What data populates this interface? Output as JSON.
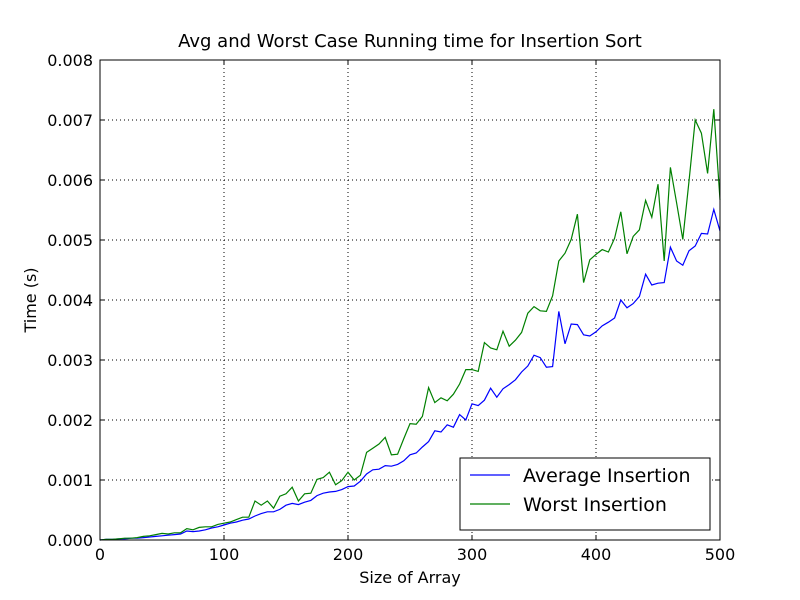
{
  "chart_data": {
    "type": "line",
    "title": "Avg and Worst Case Running time for Insertion Sort",
    "xlabel": "Size of Array",
    "ylabel": "Time (s)",
    "x": [
      0,
      5,
      10,
      15,
      20,
      25,
      30,
      35,
      40,
      45,
      50,
      55,
      60,
      65,
      70,
      75,
      80,
      85,
      90,
      95,
      100,
      105,
      110,
      115,
      120,
      125,
      130,
      135,
      140,
      145,
      150,
      155,
      160,
      165,
      170,
      175,
      180,
      185,
      190,
      195,
      200,
      205,
      210,
      215,
      220,
      225,
      230,
      235,
      240,
      245,
      250,
      255,
      260,
      265,
      270,
      275,
      280,
      285,
      290,
      295,
      300,
      305,
      310,
      315,
      320,
      325,
      330,
      335,
      340,
      345,
      350,
      355,
      360,
      365,
      370,
      375,
      380,
      385,
      390,
      395,
      400,
      405,
      410,
      415,
      420,
      425,
      430,
      435,
      440,
      445,
      450,
      455,
      460,
      465,
      470,
      475,
      480,
      485,
      490,
      495,
      500
    ],
    "series": [
      {
        "name": "Average Insertion",
        "color": "#0000ff",
        "values": [
          0,
          1e-05,
          1e-05,
          2e-05,
          2e-05,
          3e-05,
          3e-05,
          4e-05,
          5e-05,
          6e-05,
          7e-05,
          8e-05,
          9e-05,
          0.0001,
          0.00015,
          0.00014,
          0.00015,
          0.00017,
          0.0002,
          0.00022,
          0.00025,
          0.00028,
          0.0003,
          0.00033,
          0.00035,
          0.0004,
          0.00044,
          0.00047,
          0.00047,
          0.00051,
          0.00058,
          0.00061,
          0.00059,
          0.00063,
          0.00066,
          0.00074,
          0.00078,
          0.0008,
          0.00081,
          0.00084,
          0.00089,
          0.0009,
          0.00098,
          0.0011,
          0.00117,
          0.00118,
          0.00124,
          0.00123,
          0.00126,
          0.00132,
          0.00142,
          0.00145,
          0.00155,
          0.00164,
          0.00182,
          0.0018,
          0.00192,
          0.00188,
          0.00209,
          0.002,
          0.00227,
          0.00224,
          0.00233,
          0.00253,
          0.00238,
          0.00252,
          0.00259,
          0.00267,
          0.0028,
          0.0029,
          0.00308,
          0.00304,
          0.00288,
          0.00289,
          0.00381,
          0.00327,
          0.0036,
          0.00359,
          0.00342,
          0.0034,
          0.00347,
          0.00357,
          0.00363,
          0.0037,
          0.004,
          0.00387,
          0.00394,
          0.00406,
          0.00443,
          0.00425,
          0.00428,
          0.00429,
          0.00488,
          0.00465,
          0.00458,
          0.00482,
          0.0049,
          0.00511,
          0.0051,
          0.00551,
          0.00515
        ]
      },
      {
        "name": "Worst Insertion",
        "color": "#008000",
        "values": [
          0,
          1e-05,
          1e-05,
          2e-05,
          3e-05,
          3e-05,
          4e-05,
          6e-05,
          7e-05,
          9e-05,
          0.00011,
          0.0001,
          0.00012,
          0.00012,
          0.00019,
          0.00017,
          0.00021,
          0.00022,
          0.00022,
          0.00026,
          0.00028,
          0.0003,
          0.00034,
          0.00038,
          0.00038,
          0.00065,
          0.00058,
          0.00065,
          0.00053,
          0.00073,
          0.00077,
          0.00088,
          0.00065,
          0.00077,
          0.00078,
          0.00101,
          0.00104,
          0.00113,
          0.00092,
          0.00099,
          0.00113,
          0.001,
          0.00108,
          0.00146,
          0.00153,
          0.0016,
          0.00171,
          0.00142,
          0.00143,
          0.00169,
          0.00194,
          0.00193,
          0.00206,
          0.00254,
          0.00229,
          0.00237,
          0.00232,
          0.00243,
          0.0026,
          0.00284,
          0.00284,
          0.00281,
          0.00329,
          0.0032,
          0.00317,
          0.00348,
          0.00323,
          0.00333,
          0.00346,
          0.00378,
          0.00389,
          0.00382,
          0.00381,
          0.00407,
          0.00465,
          0.00478,
          0.00501,
          0.00543,
          0.00429,
          0.00467,
          0.00476,
          0.00484,
          0.0048,
          0.00503,
          0.00547,
          0.00477,
          0.00506,
          0.00517,
          0.00566,
          0.00538,
          0.00593,
          0.00465,
          0.00621,
          0.00562,
          0.00501,
          0.00598,
          0.007,
          0.00678,
          0.00611,
          0.00718,
          0.00567
        ]
      }
    ],
    "xlim": [
      0,
      500
    ],
    "xticks": [
      0,
      100,
      200,
      300,
      400,
      500
    ],
    "ylim": [
      0,
      0.008
    ],
    "yticks": [
      {
        "value": 0,
        "label": "0.000"
      },
      {
        "value": 0.001,
        "label": "0.001"
      },
      {
        "value": 0.002,
        "label": "0.002"
      },
      {
        "value": 0.003,
        "label": "0.003"
      },
      {
        "value": 0.004,
        "label": "0.004"
      },
      {
        "value": 0.005,
        "label": "0.005"
      },
      {
        "value": 0.006,
        "label": "0.006"
      },
      {
        "value": 0.007,
        "label": "0.007"
      },
      {
        "value": 0.008,
        "label": "0.008"
      }
    ],
    "grid": true,
    "legend": "lower right"
  }
}
